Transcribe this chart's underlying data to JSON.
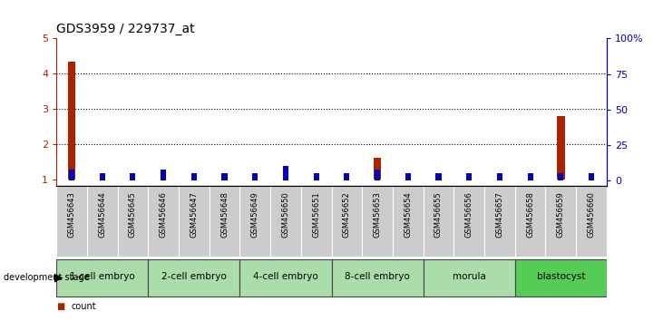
{
  "title": "GDS3959 / 229737_at",
  "samples": [
    "GSM456643",
    "GSM456644",
    "GSM456645",
    "GSM456646",
    "GSM456647",
    "GSM456648",
    "GSM456649",
    "GSM456650",
    "GSM456651",
    "GSM456652",
    "GSM456653",
    "GSM456654",
    "GSM456655",
    "GSM456656",
    "GSM456657",
    "GSM456658",
    "GSM456659",
    "GSM456660"
  ],
  "count_values": [
    4.35,
    1.0,
    1.0,
    1.0,
    1.0,
    1.0,
    1.0,
    1.0,
    1.0,
    1.0,
    1.6,
    1.0,
    1.0,
    1.0,
    1.0,
    1.0,
    2.8,
    1.0
  ],
  "percentile_values": [
    8,
    5,
    5,
    8,
    5,
    5,
    5,
    10,
    5,
    5,
    8,
    5,
    5,
    5,
    5,
    5,
    5,
    5
  ],
  "stages": [
    {
      "label": "1-cell embryo",
      "start": 0,
      "end": 3
    },
    {
      "label": "2-cell embryo",
      "start": 3,
      "end": 6
    },
    {
      "label": "4-cell embryo",
      "start": 6,
      "end": 9
    },
    {
      "label": "8-cell embryo",
      "start": 9,
      "end": 12
    },
    {
      "label": "morula",
      "start": 12,
      "end": 15
    },
    {
      "label": "blastocyst",
      "start": 15,
      "end": 18
    }
  ],
  "ylim_left": [
    0.8,
    5.0
  ],
  "ylim_right": [
    -4,
    100
  ],
  "yticks_left": [
    1,
    2,
    3,
    4,
    5
  ],
  "yticks_right": [
    0,
    25,
    50,
    75,
    100
  ],
  "count_color": "#aa2200",
  "percentile_color": "#0000bb",
  "background_color": "#ffffff",
  "sample_bg_color": "#cccccc",
  "light_green": "#aaddaa",
  "dark_green": "#55cc55",
  "stage_border_color": "#444444"
}
